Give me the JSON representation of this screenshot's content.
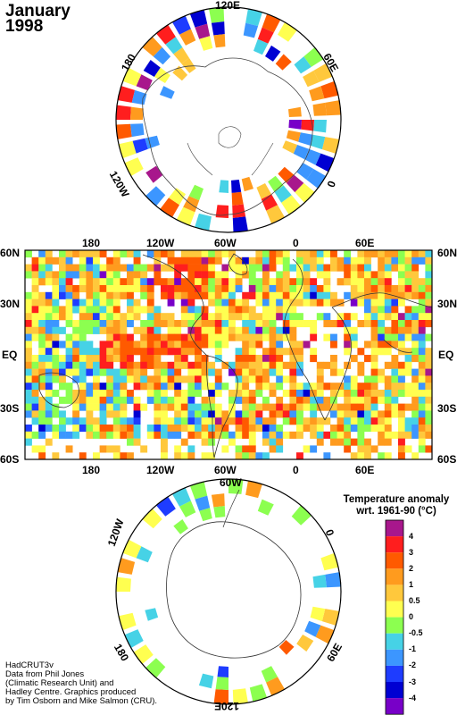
{
  "title": {
    "line1": "January",
    "line2": "1998"
  },
  "north_polar_labels": {
    "top": "120E",
    "right": "60E",
    "left": "180",
    "bottom_left": "120W",
    "bottom_right": "0"
  },
  "map_labels": {
    "top_lon": [
      "180",
      "120W",
      "60W",
      "0",
      "60E"
    ],
    "bottom_lon": [
      "180",
      "120W",
      "60W",
      "0",
      "60E"
    ],
    "left_lat": [
      "60N",
      "30N",
      "EQ",
      "30S",
      "60S"
    ],
    "right_lat": [
      "60N",
      "30N",
      "EQ",
      "30S",
      "60S"
    ]
  },
  "south_polar_labels": {
    "top": "60W",
    "upper_left": "120W",
    "upper_right": "0",
    "lower_left": "180",
    "lower_right": "60E",
    "bottom": "120E"
  },
  "legend": {
    "title_line1": "Temperature anomaly",
    "title_line2": "wrt. 1961-90  (°C)",
    "ticks": [
      "4",
      "3",
      "2",
      "1",
      "0.5",
      "0",
      "-0.5",
      "-1",
      "-2",
      "-3",
      "-4"
    ],
    "colors": [
      "#a8178c",
      "#ff1e1e",
      "#ff5a00",
      "#ff9b1e",
      "#ffc83c",
      "#ffff50",
      "#8cff50",
      "#46d2e6",
      "#3c96ff",
      "#1e3cff",
      "#0000d2",
      "#7800c8"
    ]
  },
  "credit": {
    "line1": "HadCRUT3v",
    "line2": "Data from Phil Jones",
    "line3": "(Climatic Research Unit) and",
    "line4": "Hadley Centre.  Graphics produced",
    "line5": "by Tim Osborn and Mike Salmon (CRU)."
  }
}
